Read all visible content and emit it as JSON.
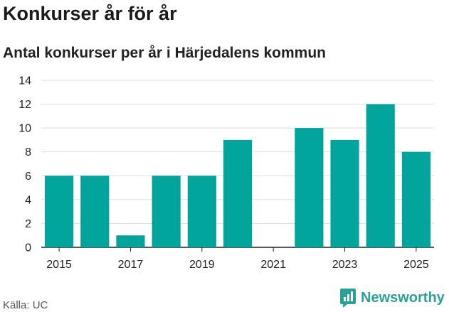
{
  "header": {
    "title": "Konkurser år för år",
    "subtitle": "Antal konkurser per år i Härjedalens kommun"
  },
  "footer": {
    "source": "Källa: UC",
    "brand": "Newsworthy",
    "brand_color": "#2aa198"
  },
  "chart_data": {
    "type": "bar",
    "title": "Konkurser år för år",
    "subtitle": "Antal konkurser per år i Härjedalens kommun",
    "xlabel": "",
    "ylabel": "",
    "categories": [
      2015,
      2016,
      2017,
      2018,
      2019,
      2020,
      2021,
      2022,
      2023,
      2024,
      2025
    ],
    "values": [
      6,
      6,
      1,
      6,
      6,
      9,
      0,
      10,
      9,
      12,
      8
    ],
    "x_tick_labels": [
      "2015",
      "2017",
      "2019",
      "2021",
      "2023",
      "2025"
    ],
    "y_tick_labels": [
      "0",
      "2",
      "4",
      "6",
      "8",
      "10",
      "12",
      "14"
    ],
    "ylim": [
      0,
      14
    ],
    "grid": true,
    "legend": "none",
    "bar_color": "#00a49a"
  }
}
